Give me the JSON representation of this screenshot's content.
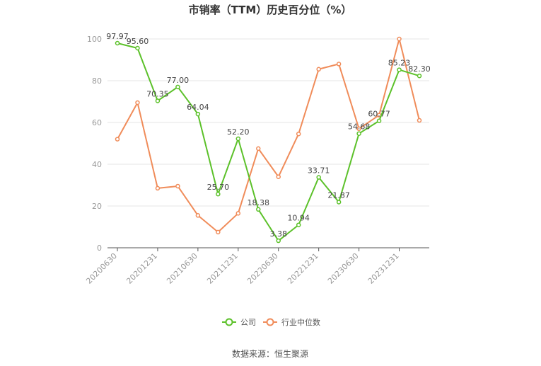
{
  "chart_data": {
    "type": "line",
    "title": "市销率（TTM）历史百分位（%）",
    "x": [
      "20200630",
      "20200930",
      "20201231",
      "20210331",
      "20210630",
      "20210930",
      "20211231",
      "20220331",
      "20220630",
      "20220930",
      "20221231",
      "20230331",
      "20230630",
      "20230930",
      "20231231",
      "20240331"
    ],
    "x_tick_labels": [
      "20200630",
      "20201231",
      "20210630",
      "20211231",
      "20220630",
      "20221231",
      "20230630",
      "20231231"
    ],
    "y_ticks": [
      "0",
      "20",
      "40",
      "60",
      "80",
      "100"
    ],
    "ylim": [
      0,
      100
    ],
    "grid": true,
    "legend_position": "bottom",
    "series": [
      {
        "name": "公司",
        "color": "#5cc12a",
        "values": [
          97.97,
          95.6,
          70.35,
          77.0,
          64.04,
          25.7,
          52.2,
          18.38,
          3.38,
          10.94,
          33.71,
          21.87,
          54.68,
          60.77,
          85.23,
          82.3
        ],
        "labels": [
          "97.97",
          "95.60",
          "70.35",
          "77.00",
          "64.04",
          "25.70",
          "52.20",
          "18.38",
          "3.38",
          "10.94",
          "33.71",
          "21.87",
          "54.68",
          "60.77",
          "85.23",
          "82.30"
        ]
      },
      {
        "name": "行业中位数",
        "color": "#f08c5a",
        "values": [
          52,
          69.5,
          28.5,
          29.5,
          15.5,
          7.5,
          16.5,
          47.5,
          34,
          54.5,
          85.5,
          88,
          57,
          63.5,
          100,
          61
        ]
      }
    ]
  },
  "source": "数据来源：恒生聚源"
}
